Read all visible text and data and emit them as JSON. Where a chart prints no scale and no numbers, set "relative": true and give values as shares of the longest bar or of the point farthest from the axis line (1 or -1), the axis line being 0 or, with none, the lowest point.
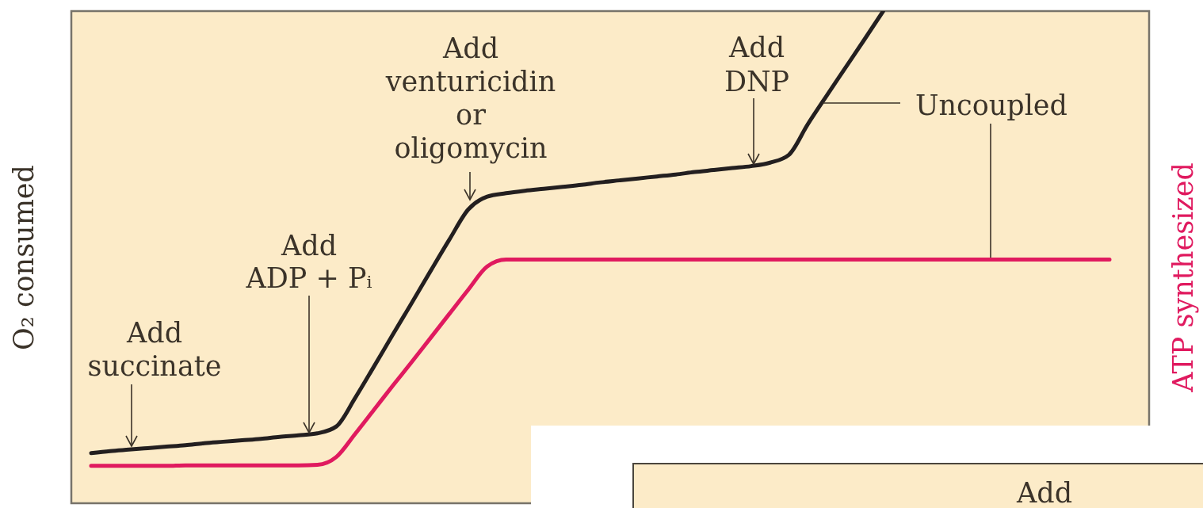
{
  "chart_data": {
    "type": "line",
    "relative": true,
    "line_style": "solid",
    "ylabel": "O₂ consumed",
    "y2label": "ATP synthesized",
    "categories": [
      null,
      null,
      null,
      null,
      null,
      null,
      null,
      null,
      null,
      null,
      null,
      null,
      null,
      null,
      null,
      null,
      null,
      null,
      null,
      null,
      null,
      null,
      null,
      null,
      null,
      null,
      null,
      null,
      null,
      null,
      null,
      null,
      null,
      null,
      null,
      null,
      null,
      null,
      null,
      null,
      null,
      null,
      null,
      null,
      null,
      null,
      null,
      null,
      null,
      null,
      null,
      null,
      null,
      null,
      null
    ],
    "series": [
      {
        "color": "#231f20",
        "values": [
          0.102,
          0.106,
          0.109,
          0.112,
          0.115,
          0.118,
          0.122,
          0.125,
          0.128,
          0.131,
          0.135,
          0.138,
          0.142,
          0.156,
          0.214,
          0.278,
          0.343,
          0.407,
          0.472,
          0.536,
          0.597,
          0.623,
          0.63,
          0.635,
          0.639,
          0.643,
          0.647,
          0.652,
          0.656,
          0.66,
          0.664,
          0.668,
          0.673,
          0.677,
          0.681,
          0.685,
          0.692,
          0.708,
          0.77,
          0.828,
          0.885,
          0.942,
          1.0,
          null,
          null,
          null,
          null,
          null,
          null,
          null,
          null,
          null,
          null,
          null,
          null
        ]
      },
      {
        "color": "#e01a5f",
        "values": [
          0.076,
          0.076,
          0.076,
          0.076,
          0.076,
          0.077,
          0.077,
          0.077,
          0.077,
          0.077,
          0.077,
          0.077,
          0.078,
          0.094,
          0.141,
          0.19,
          0.239,
          0.287,
          0.336,
          0.385,
          0.434,
          0.481,
          0.495,
          0.495,
          0.495,
          0.495,
          0.495,
          0.495,
          0.495,
          0.495,
          0.495,
          0.495,
          0.495,
          0.495,
          0.495,
          0.495,
          0.495,
          0.495,
          0.495,
          0.495,
          0.495,
          0.495,
          0.495,
          0.495,
          0.495,
          0.495,
          0.495,
          0.495,
          0.495,
          0.495,
          0.495,
          0.495,
          0.495,
          0.495,
          0.495
        ]
      }
    ],
    "annotations": [
      "Add\nsuccinate",
      "Add\nADP + Pᵢ",
      "Add\nventuricidin\nor\noligomycin",
      "Add\nDNP",
      "Uncoupled",
      "Add"
    ]
  }
}
